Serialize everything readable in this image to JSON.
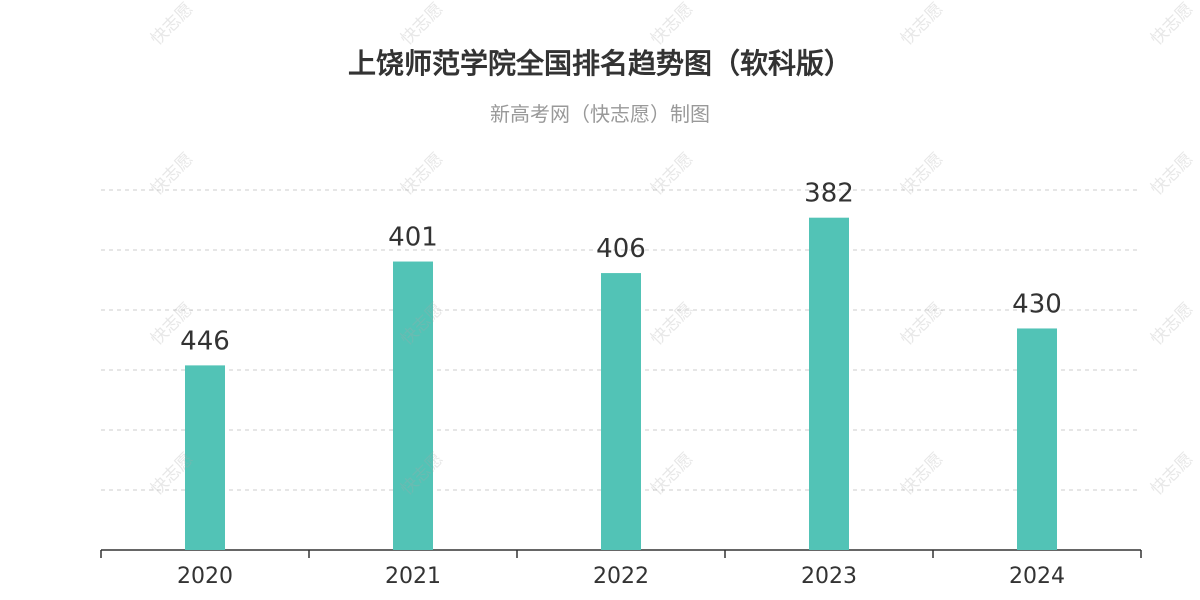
{
  "title": "上饶师范学院全国排名趋势图（软科版）",
  "subtitle": "新高考网（快志愿）制图",
  "watermark": "快志愿",
  "colors": {
    "bar": "#52c3b6",
    "grid": "#cccccc",
    "axis": "#333333",
    "label": "#333333"
  },
  "chart_data": {
    "type": "bar",
    "categories": [
      "2020",
      "2021",
      "2022",
      "2023",
      "2024"
    ],
    "values": [
      446,
      401,
      406,
      382,
      430
    ],
    "ylim": [
      526,
      370
    ],
    "y_inverted": true,
    "grid": true,
    "data_labels": true
  }
}
